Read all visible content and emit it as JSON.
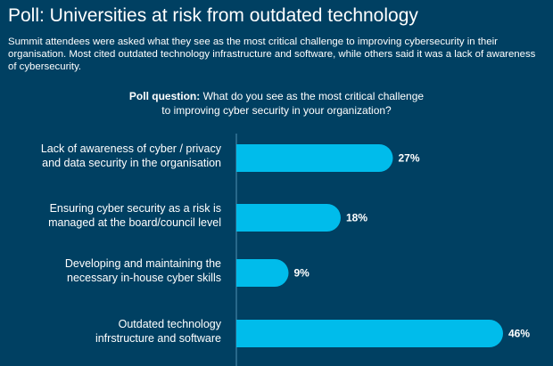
{
  "header": {
    "title": "Poll: Universities at risk from outdated technology",
    "subtitle": "Summit attendees were asked what they see as the most critical challenge to improving cybersecurity in their organisation. Most cited outdated technology infrastructure and software, while others said it was a lack of awareness of cybersecurity."
  },
  "question": {
    "label": "Poll question:",
    "text_line1": "What do you see as the most critical challenge",
    "text_line2": "to improving cyber security in your organization?"
  },
  "chart_data": {
    "type": "bar",
    "orientation": "horizontal",
    "categories": [
      [
        "Lack of awareness of cyber / privacy",
        "and data security in the organisation"
      ],
      [
        "Ensuring cyber security as a risk is",
        "managed at the board/council level"
      ],
      [
        "Developing and maintaining the",
        "necessary in-house cyber skills"
      ],
      [
        "Outdated technology",
        "infrstructure and software"
      ]
    ],
    "values": [
      27,
      18,
      9,
      46
    ],
    "value_labels": [
      "27%",
      "18%",
      "9%",
      "46%"
    ],
    "value_unit": "%",
    "xlim": [
      0,
      50
    ],
    "grid": false,
    "legend": "none",
    "bar_color": "#00BCEB",
    "axis_color": "#4f8fb3"
  },
  "colors": {
    "background": "#004062",
    "text": "#ffffff"
  }
}
